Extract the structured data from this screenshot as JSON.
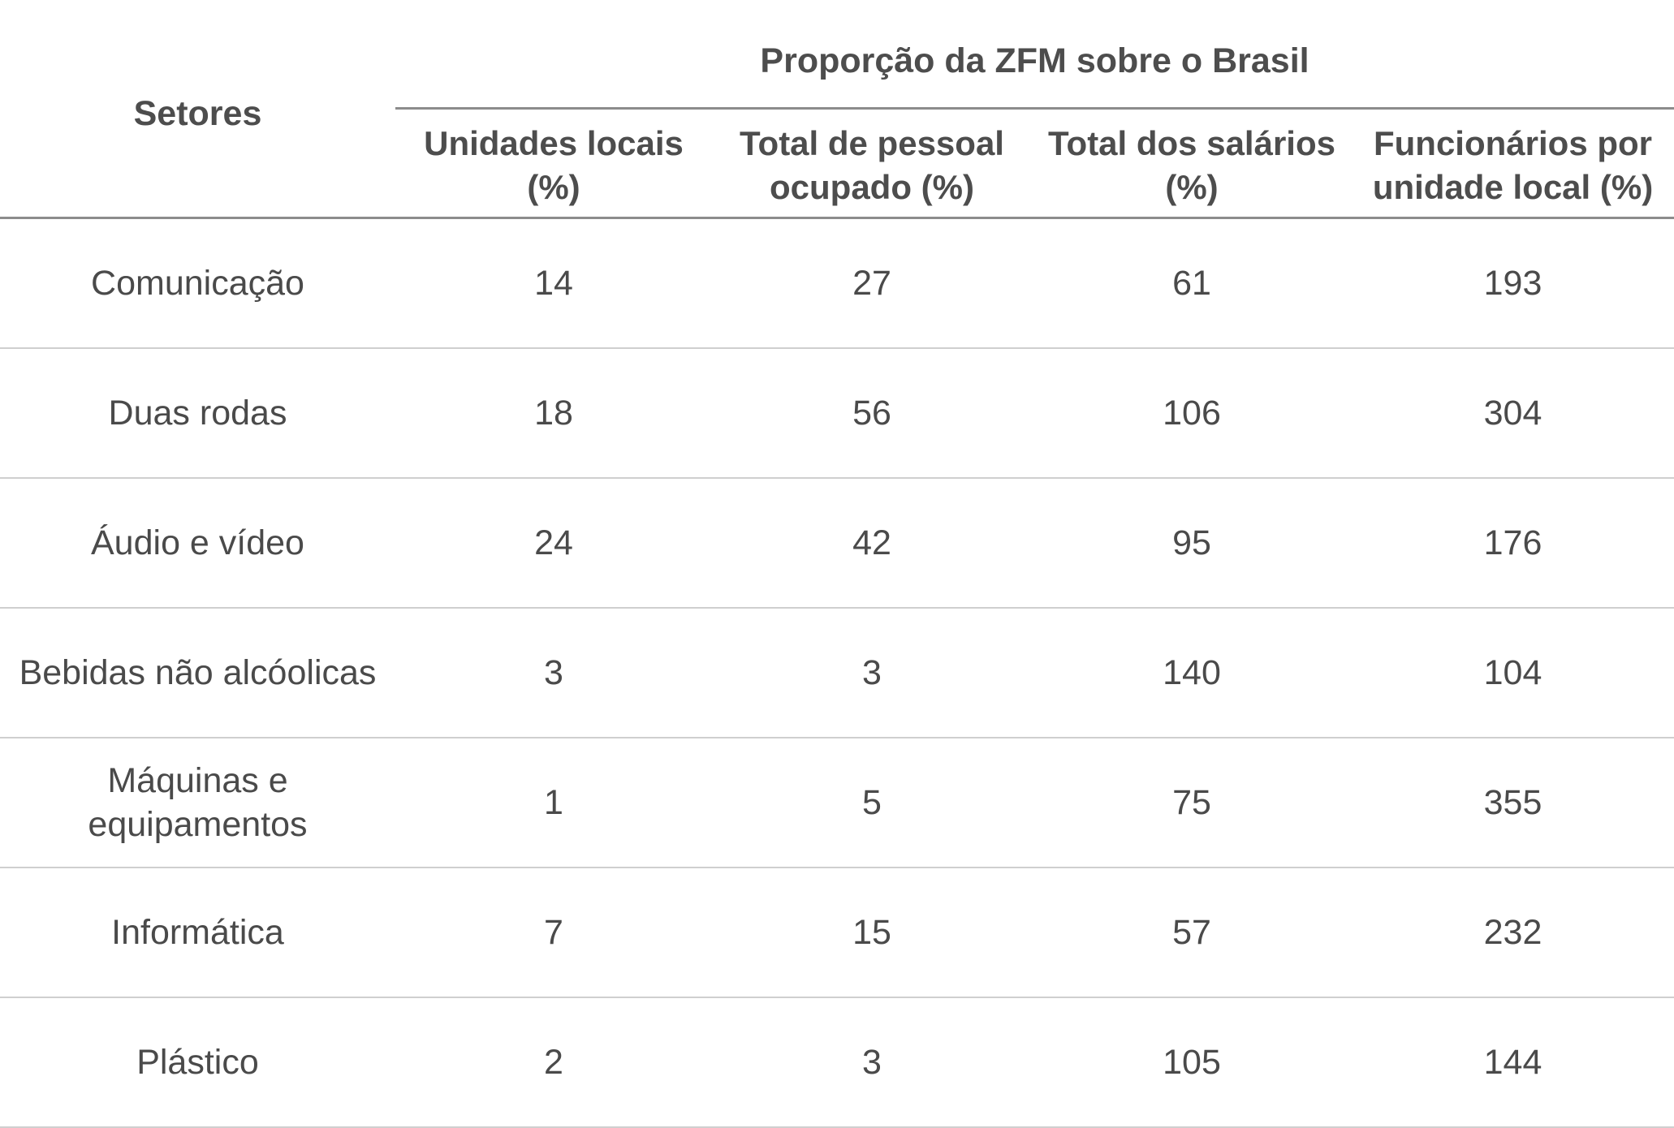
{
  "table": {
    "group_header": "Proporção da ZFM sobre o Brasil",
    "row_header": "Setores",
    "columns": [
      "Unidades locais\n(%)",
      "Total de pessoal\nocupado (%)",
      "Total dos salários\n(%)",
      "Funcionários por\nunidade local (%)"
    ],
    "rows": [
      {
        "setor": "Comunicação",
        "unidades": "14",
        "pessoal": "27",
        "salarios": "61",
        "funcionarios": "193"
      },
      {
        "setor": "Duas rodas",
        "unidades": "18",
        "pessoal": "56",
        "salarios": "106",
        "funcionarios": "304"
      },
      {
        "setor": "Áudio e vídeo",
        "unidades": "24",
        "pessoal": "42",
        "salarios": "95",
        "funcionarios": "176"
      },
      {
        "setor": "Bebidas não alcóolicas",
        "unidades": "3",
        "pessoal": "3",
        "salarios": "140",
        "funcionarios": "104"
      },
      {
        "setor": "Máquinas e equipamentos",
        "unidades": "1",
        "pessoal": "5",
        "salarios": "75",
        "funcionarios": "355"
      },
      {
        "setor": "Informática",
        "unidades": "7",
        "pessoal": "15",
        "salarios": "57",
        "funcionarios": "232"
      },
      {
        "setor": "Plástico",
        "unidades": "2",
        "pessoal": "3",
        "salarios": "105",
        "funcionarios": "144"
      }
    ]
  }
}
